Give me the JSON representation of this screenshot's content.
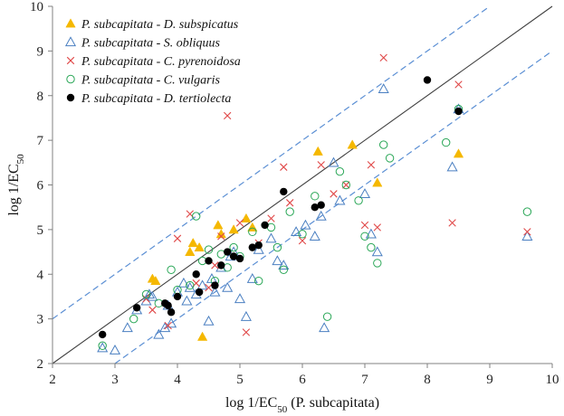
{
  "chart_data": {
    "type": "scatter",
    "title": "",
    "xlabel": "log 1/EC50 (P. subcapitata)",
    "ylabel": "log 1/EC50",
    "xlim": [
      2,
      10
    ],
    "ylim": [
      2,
      10
    ],
    "xticks": [
      "2",
      "3",
      "4",
      "5",
      "6",
      "7",
      "8",
      "9",
      "10"
    ],
    "yticks": [
      "2",
      "3",
      "4",
      "5",
      "6",
      "7",
      "8",
      "9",
      "10"
    ],
    "x_label_parts": {
      "main": "log 1/EC",
      "sub": "50",
      "paren": "(P. subcapitata)"
    },
    "y_label_parts": {
      "main": "log 1/EC",
      "sub": "50"
    },
    "legend_position": "top-left",
    "reference_lines": [
      {
        "name": "identity",
        "intercept": 0,
        "style": "solid",
        "color": "#404040"
      },
      {
        "name": "upper-bound",
        "intercept": 1,
        "style": "dashed",
        "color": "#5b8fd4"
      },
      {
        "name": "lower-bound",
        "intercept": -1,
        "style": "dashed",
        "color": "#5b8fd4"
      }
    ],
    "series": [
      {
        "name": "P. subcapitata - D. subspicatus",
        "marker": "filled-triangle",
        "color": "#f5b800",
        "points": [
          [
            3.6,
            3.9
          ],
          [
            3.65,
            3.85
          ],
          [
            4.2,
            4.5
          ],
          [
            4.25,
            4.7
          ],
          [
            4.35,
            4.6
          ],
          [
            4.4,
            2.6
          ],
          [
            4.65,
            5.1
          ],
          [
            4.7,
            4.9
          ],
          [
            4.9,
            5.0
          ],
          [
            5.1,
            5.25
          ],
          [
            5.2,
            5.05
          ],
          [
            6.25,
            6.75
          ],
          [
            6.8,
            6.9
          ],
          [
            7.2,
            6.05
          ],
          [
            8.5,
            6.7
          ]
        ]
      },
      {
        "name": "P. subcapitata - S. obliquus",
        "marker": "open-triangle",
        "color": "#4a7fc1",
        "points": [
          [
            2.8,
            2.35
          ],
          [
            3.0,
            2.3
          ],
          [
            3.2,
            2.8
          ],
          [
            3.35,
            3.2
          ],
          [
            3.5,
            3.4
          ],
          [
            3.55,
            3.55
          ],
          [
            3.6,
            3.5
          ],
          [
            3.7,
            2.65
          ],
          [
            3.8,
            2.8
          ],
          [
            3.85,
            3.3
          ],
          [
            3.9,
            2.9
          ],
          [
            4.0,
            3.6
          ],
          [
            4.1,
            3.8
          ],
          [
            4.15,
            3.4
          ],
          [
            4.2,
            3.7
          ],
          [
            4.3,
            3.55
          ],
          [
            4.4,
            3.75
          ],
          [
            4.5,
            2.95
          ],
          [
            4.55,
            3.9
          ],
          [
            4.6,
            3.6
          ],
          [
            4.7,
            4.15
          ],
          [
            4.8,
            3.7
          ],
          [
            4.85,
            4.4
          ],
          [
            4.9,
            4.5
          ],
          [
            5.0,
            3.45
          ],
          [
            5.1,
            3.05
          ],
          [
            5.2,
            3.9
          ],
          [
            5.3,
            4.55
          ],
          [
            5.5,
            4.8
          ],
          [
            5.6,
            4.3
          ],
          [
            5.7,
            4.2
          ],
          [
            5.9,
            4.95
          ],
          [
            6.05,
            5.1
          ],
          [
            6.2,
            4.85
          ],
          [
            6.3,
            5.3
          ],
          [
            6.35,
            2.8
          ],
          [
            6.5,
            6.5
          ],
          [
            6.6,
            5.65
          ],
          [
            7.0,
            5.8
          ],
          [
            7.1,
            4.9
          ],
          [
            7.2,
            4.5
          ],
          [
            7.3,
            8.15
          ],
          [
            8.4,
            6.4
          ],
          [
            8.5,
            7.7
          ],
          [
            9.6,
            4.85
          ]
        ]
      },
      {
        "name": "P. subcapitata - C. pyrenoidosa",
        "marker": "cross",
        "color": "#e04848",
        "points": [
          [
            3.5,
            3.45
          ],
          [
            3.6,
            3.2
          ],
          [
            3.85,
            2.85
          ],
          [
            4.0,
            4.8
          ],
          [
            4.2,
            5.35
          ],
          [
            4.3,
            3.8
          ],
          [
            4.5,
            3.7
          ],
          [
            4.6,
            4.2
          ],
          [
            4.7,
            4.85
          ],
          [
            4.8,
            7.55
          ],
          [
            5.0,
            5.15
          ],
          [
            5.1,
            2.7
          ],
          [
            5.3,
            4.7
          ],
          [
            5.5,
            5.25
          ],
          [
            5.7,
            6.4
          ],
          [
            5.8,
            5.6
          ],
          [
            6.0,
            4.75
          ],
          [
            6.3,
            6.45
          ],
          [
            6.5,
            5.8
          ],
          [
            6.7,
            6.0
          ],
          [
            7.0,
            5.1
          ],
          [
            7.1,
            6.45
          ],
          [
            7.2,
            5.05
          ],
          [
            7.3,
            8.85
          ],
          [
            8.4,
            5.15
          ],
          [
            8.5,
            8.25
          ],
          [
            9.6,
            4.95
          ]
        ]
      },
      {
        "name": "P. subcapitata - C. vulgaris",
        "marker": "open-circle",
        "color": "#2aa757",
        "points": [
          [
            2.8,
            2.4
          ],
          [
            3.3,
            3.0
          ],
          [
            3.5,
            3.55
          ],
          [
            3.7,
            3.35
          ],
          [
            3.9,
            4.1
          ],
          [
            4.0,
            3.65
          ],
          [
            4.2,
            3.75
          ],
          [
            4.3,
            5.3
          ],
          [
            4.4,
            4.3
          ],
          [
            4.5,
            4.55
          ],
          [
            4.6,
            3.85
          ],
          [
            4.7,
            4.45
          ],
          [
            4.8,
            4.15
          ],
          [
            4.9,
            4.6
          ],
          [
            5.0,
            4.4
          ],
          [
            5.2,
            4.95
          ],
          [
            5.3,
            3.85
          ],
          [
            5.5,
            5.05
          ],
          [
            5.6,
            4.6
          ],
          [
            5.7,
            4.1
          ],
          [
            5.8,
            5.4
          ],
          [
            6.0,
            4.9
          ],
          [
            6.2,
            5.75
          ],
          [
            6.4,
            3.05
          ],
          [
            6.6,
            6.3
          ],
          [
            6.7,
            6.0
          ],
          [
            6.9,
            5.65
          ],
          [
            7.0,
            4.85
          ],
          [
            7.1,
            4.6
          ],
          [
            7.2,
            4.25
          ],
          [
            7.3,
            6.9
          ],
          [
            7.4,
            6.6
          ],
          [
            8.3,
            6.95
          ],
          [
            8.5,
            7.7
          ],
          [
            9.6,
            5.4
          ]
        ]
      },
      {
        "name": "P. subcapitata - D. tertiolecta",
        "marker": "filled-circle",
        "color": "#000000",
        "points": [
          [
            2.8,
            2.65
          ],
          [
            3.35,
            3.25
          ],
          [
            3.8,
            3.35
          ],
          [
            3.85,
            3.3
          ],
          [
            3.9,
            3.15
          ],
          [
            4.0,
            3.5
          ],
          [
            4.3,
            4.0
          ],
          [
            4.35,
            3.6
          ],
          [
            4.5,
            4.3
          ],
          [
            4.6,
            3.75
          ],
          [
            4.7,
            4.2
          ],
          [
            4.8,
            4.5
          ],
          [
            4.9,
            4.4
          ],
          [
            5.0,
            4.35
          ],
          [
            5.2,
            4.6
          ],
          [
            5.3,
            4.65
          ],
          [
            5.4,
            5.1
          ],
          [
            5.7,
            5.85
          ],
          [
            6.2,
            5.5
          ],
          [
            6.3,
            5.55
          ],
          [
            8.0,
            8.35
          ],
          [
            8.5,
            7.65
          ]
        ]
      }
    ]
  }
}
